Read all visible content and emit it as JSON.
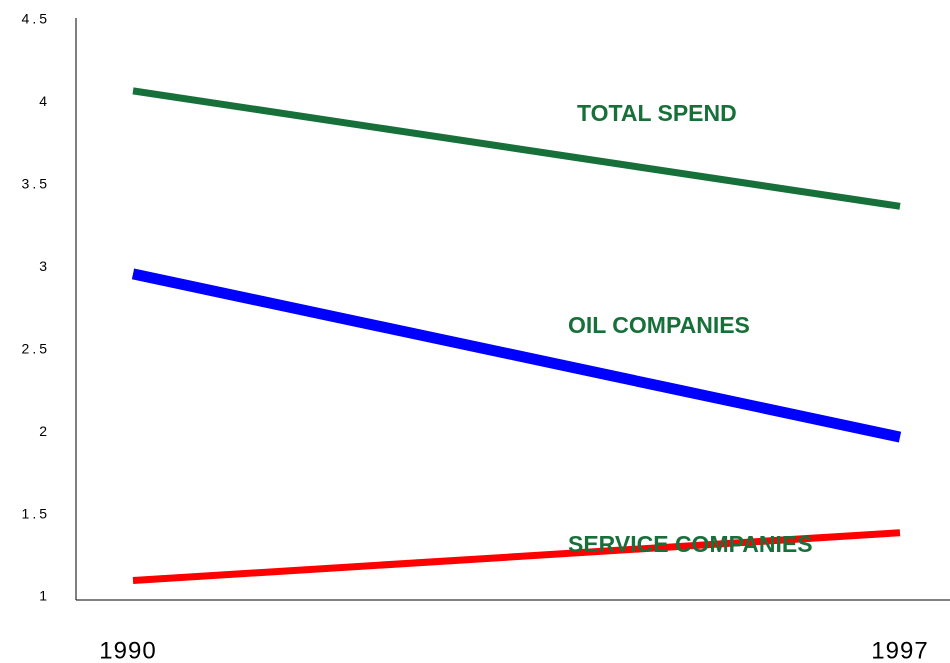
{
  "chart_data": {
    "type": "line",
    "categories": [
      "1990",
      "1997"
    ],
    "series": [
      {
        "name": "TOTAL SPEND",
        "color": "#17703a",
        "values": [
          4.07,
          3.37
        ]
      },
      {
        "name": "OIL COMPANIES",
        "color": "#0000ff",
        "values": [
          2.96,
          1.97
        ]
      },
      {
        "name": "SERVICE COMPANIES",
        "color": "#ff0000",
        "values": [
          1.1,
          1.39
        ]
      }
    ],
    "label_color": "#17703a",
    "ylim": [
      1,
      4.5
    ],
    "yticks": [
      1,
      1.5,
      2,
      2.5,
      3,
      3.5,
      4,
      4.5
    ],
    "grid": false
  }
}
